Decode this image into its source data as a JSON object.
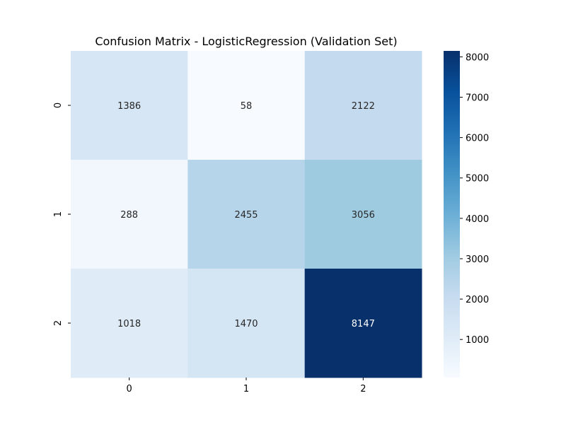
{
  "chart_data": {
    "type": "heatmap",
    "title": "Confusion Matrix - LogisticRegression (Validation Set)",
    "xlabel": "",
    "ylabel": "",
    "x_categories": [
      "0",
      "1",
      "2"
    ],
    "y_categories": [
      "0",
      "1",
      "2"
    ],
    "values": [
      [
        1386,
        58,
        2122
      ],
      [
        288,
        2455,
        3056
      ],
      [
        1018,
        1470,
        8147
      ]
    ],
    "colormap": "Blues",
    "color_range": [
      58,
      8147
    ],
    "colorbar": {
      "ticks": [
        1000,
        2000,
        3000,
        4000,
        5000,
        6000,
        7000,
        8000
      ],
      "tick_labels": [
        "1000",
        "2000",
        "3000",
        "4000",
        "5000",
        "6000",
        "7000",
        "8000"
      ]
    },
    "grid": false,
    "colors": {
      "text_light": "#ffffff",
      "text_dark": "#262626",
      "axis": "#000000"
    }
  }
}
